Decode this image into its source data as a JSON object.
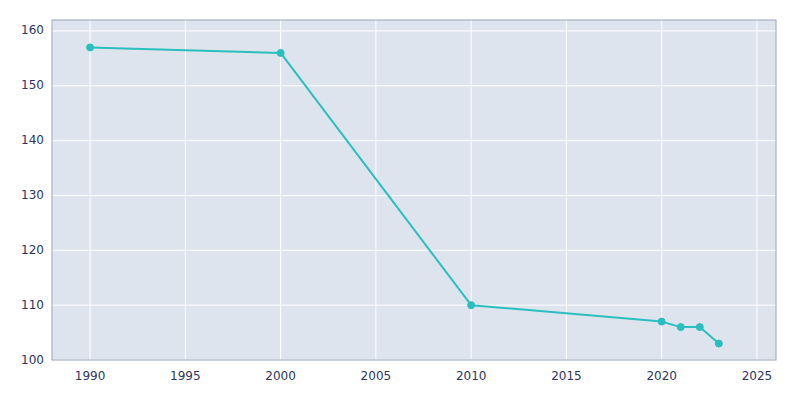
{
  "chart_data": {
    "type": "line",
    "x": [
      1990,
      2000,
      2010,
      2020,
      2021,
      2022,
      2023
    ],
    "values": [
      157,
      156,
      110,
      107,
      106,
      106,
      103
    ],
    "color": "#2ABFBF",
    "marker": "circle",
    "xlim": [
      1988,
      2026
    ],
    "ylim": [
      100,
      162
    ],
    "xticks": [
      1990,
      1995,
      2000,
      2005,
      2010,
      2015,
      2020,
      2025
    ],
    "yticks": [
      100,
      110,
      120,
      130,
      140,
      150,
      160
    ],
    "grid": true
  }
}
